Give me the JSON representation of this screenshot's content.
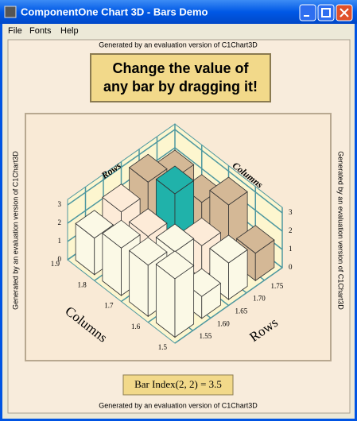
{
  "window": {
    "title": "ComponentOne Chart 3D - Bars Demo",
    "menu": [
      "File",
      "Fonts",
      "Help"
    ]
  },
  "watermark": "Generated by an evaluation version of C1Chart3D",
  "banner": [
    "Change the value of",
    "any bar by dragging it!"
  ],
  "chart": {
    "type": "bar3d",
    "row_axis": {
      "title": "Rows",
      "lim": [
        1.5,
        1.8
      ],
      "ticks": [
        1.55,
        {
          "value": 1.6,
          "label": "1.60"
        },
        1.65,
        {
          "value": 1.7,
          "label": "1.70"
        },
        1.75
      ]
    },
    "column_axis": {
      "title": "Columns",
      "lim": [
        1.5,
        1.9
      ],
      "ticks": [
        1.5,
        1.6,
        1.7,
        1.8,
        1.9
      ]
    },
    "z_axis": {
      "lim": [
        0,
        3.3
      ],
      "ticks": [
        0,
        1,
        2,
        3
      ]
    },
    "values": [
      [
        3.2,
        1.2,
        2.0,
        1.5
      ],
      [
        2.8,
        2.5,
        1.8,
        3.0
      ],
      [
        2.6,
        2.2,
        3.5,
        2.0
      ],
      [
        2.0,
        2.4,
        3.0,
        2.2
      ]
    ],
    "colors": [
      [
        "#fbf9e6",
        "#fbf9e6",
        "#fbf9e6",
        "#d4b896"
      ],
      [
        "#fbf9e6",
        "#fbf9e6",
        "#fdebd8",
        "#d4b896"
      ],
      [
        "#fbf9e6",
        "#fdebd8",
        "#20b2aa",
        "#d4b896"
      ],
      [
        "#fbf9e6",
        "#fdebd8",
        "#d4b896",
        "#d4b896"
      ]
    ],
    "wall_color": "#fdf6cf",
    "grid_color": "#4e98a0"
  },
  "status": "Bar Index(2, 2) = 3.5"
}
